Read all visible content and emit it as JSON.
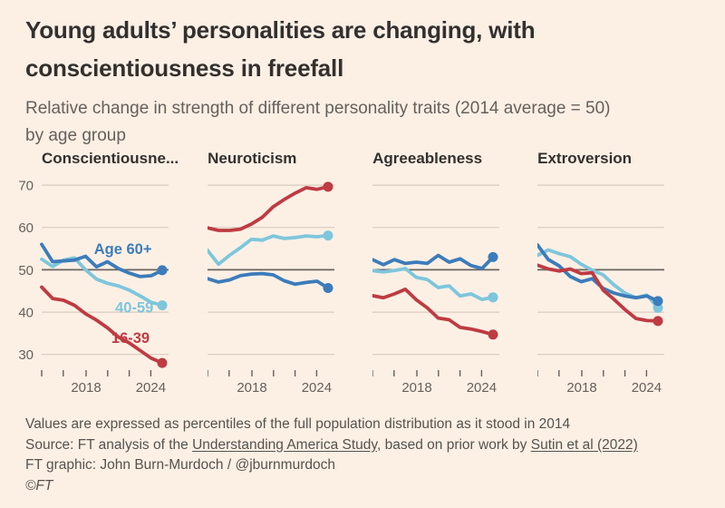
{
  "header": {
    "title_line1": "Young adults’ personalities are changing, with",
    "title_line2": "conscientiousness in freefall",
    "subtitle_line1": "Relative change in strength of different personality traits (2014 average = 50)",
    "subtitle_line2": "by age group"
  },
  "colors": {
    "background": "#FCF0E5",
    "title_text": "#33302E",
    "secondary_text": "#66605C",
    "gridline": "#D8CCC0",
    "baseline_50": "#6A6460",
    "axis_tick": "#66605C",
    "age_60_plus": "#3C7CBA",
    "age_40_59": "#7EC6DC",
    "age_16_39": "#BE3B42"
  },
  "chart_data": {
    "type": "line",
    "axis": {
      "y_gridlines": [
        70,
        60,
        50,
        40,
        30
      ],
      "baseline": 50,
      "ylim": [
        27,
        73
      ],
      "x_labels": [
        "2018",
        "2024"
      ],
      "x_years": [
        2014,
        2015,
        2016,
        2017,
        2018,
        2019,
        2020,
        2021,
        2022,
        2023,
        2024,
        2025
      ],
      "grid": "horizontal-only",
      "legend": "inline-labels-on-first-chart"
    },
    "charts": [
      {
        "id": "conscientiousness",
        "title": "Conscientiousne...",
        "series": [
          {
            "key": "age_60_plus",
            "name": "Age 60+",
            "values": [
              56.0,
              51.9,
              52.1,
              52.3,
              53.2,
              50.7,
              51.9,
              50.3,
              49.2,
              48.4,
              48.6,
              49.9
            ]
          },
          {
            "key": "age_40_59",
            "name": "40-59",
            "values": [
              52.5,
              50.8,
              52.3,
              52.8,
              50.0,
              47.8,
              46.8,
              46.2,
              45.2,
              43.8,
              42.3,
              41.6
            ]
          },
          {
            "key": "age_16_39",
            "name": "16-39",
            "values": [
              45.9,
              43.2,
              42.8,
              41.6,
              39.6,
              38.1,
              36.3,
              34.1,
              32.7,
              30.9,
              29.1,
              28.0
            ]
          }
        ],
        "series_labels": [
          {
            "key": "age_60_plus",
            "text": "Age 60+",
            "f": 0.64,
            "v": 55.0
          },
          {
            "key": "age_40_59",
            "text": "40-59",
            "f": 0.73,
            "v": 41.2
          },
          {
            "key": "age_16_39",
            "text": "16-39",
            "f": 0.7,
            "v": 34.0
          }
        ]
      },
      {
        "id": "neuroticism",
        "title": "Neuroticism",
        "series": [
          {
            "key": "age_60_plus",
            "name": "Age 60+",
            "values": [
              47.9,
              47.1,
              47.6,
              48.6,
              49.0,
              49.1,
              48.8,
              47.4,
              46.6,
              47.0,
              47.3,
              45.7
            ]
          },
          {
            "key": "age_40_59",
            "name": "40-59",
            "values": [
              54.6,
              51.3,
              53.4,
              55.2,
              57.2,
              57.0,
              58.0,
              57.4,
              57.6,
              58.0,
              57.8,
              58.1
            ]
          },
          {
            "key": "age_16_39",
            "name": "16-39",
            "values": [
              59.9,
              59.3,
              59.3,
              59.6,
              60.8,
              62.4,
              64.9,
              66.6,
              68.1,
              69.4,
              69.0,
              69.6
            ]
          }
        ],
        "series_labels": []
      },
      {
        "id": "agreeableness",
        "title": "Agreeableness",
        "series": [
          {
            "key": "age_60_plus",
            "name": "Age 60+",
            "values": [
              52.4,
              51.2,
              52.4,
              51.5,
              51.8,
              51.5,
              53.4,
              51.8,
              52.6,
              51.0,
              50.3,
              53.0
            ]
          },
          {
            "key": "age_40_59",
            "name": "40-59",
            "values": [
              49.8,
              49.5,
              49.8,
              50.3,
              48.2,
              47.7,
              45.8,
              46.2,
              43.8,
              44.3,
              43.0,
              43.5
            ]
          },
          {
            "key": "age_16_39",
            "name": "16-39",
            "values": [
              43.9,
              43.4,
              44.3,
              45.4,
              42.9,
              41.0,
              38.6,
              38.2,
              36.4,
              36.0,
              35.4,
              34.7
            ]
          }
        ],
        "series_labels": []
      },
      {
        "id": "extroversion",
        "title": "Extroversion",
        "series": [
          {
            "key": "age_60_plus",
            "name": "Age 60+",
            "values": [
              55.9,
              52.4,
              50.9,
              48.4,
              47.2,
              47.9,
              45.6,
              44.5,
              43.8,
              43.4,
              43.8,
              42.6
            ]
          },
          {
            "key": "age_40_59",
            "name": "40-59",
            "values": [
              53.4,
              54.7,
              53.8,
              53.1,
              51.3,
              49.9,
              48.8,
              46.4,
              44.5,
              43.4,
              44.0,
              41.0
            ]
          },
          {
            "key": "age_16_39",
            "name": "16-39",
            "values": [
              51.1,
              50.2,
              49.7,
              50.2,
              49.1,
              49.3,
              45.2,
              43.0,
              40.6,
              38.5,
              38.0,
              37.9
            ]
          }
        ],
        "series_labels": []
      }
    ]
  },
  "footer": {
    "notes": "Values are expressed as percentiles of the full population distribution as it stood in 2014",
    "source_prefix": "Source: FT analysis of the ",
    "source_link1": "Understanding America Study",
    "source_mid": ", based on prior work by ",
    "source_link2": "Sutin et al (2022)",
    "credit": "FT graphic: John Burn-Murdoch / @jburnmurdoch",
    "copyright": "©FT"
  }
}
